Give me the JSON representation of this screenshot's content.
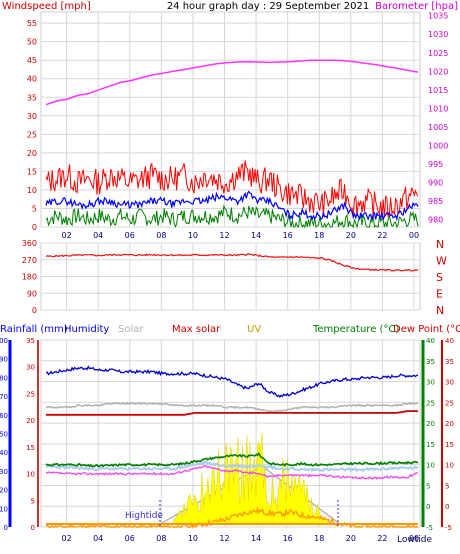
{
  "header": {
    "left_title": "Windspeed [mph]",
    "center_title": "24 hour graph day : 29 September 2021",
    "right_title": "Barometer [hpa]"
  },
  "colors": {
    "grid": "#d8d8d8",
    "wind_gust": "#ff0000",
    "wind_avg": "#0000ff",
    "wind_low": "#008000",
    "barometer": "#ff33ff",
    "direction": "#ee1111",
    "rain": "#0000ff",
    "humidity": "#0000cc",
    "solar": "#b0b0b0",
    "maxsolar": "#cc0000",
    "uv": "#cc9900",
    "temperature": "#008000",
    "dewpoint": "#cc0000"
  },
  "chart_data": [
    {
      "type": "line",
      "name": "wind-barometer",
      "title": "24 hour graph day : 29 September 2021",
      "ylabel_left": "Windspeed [mph]",
      "ylabel_right": "Barometer [hpa]",
      "x_ticks": [
        "02",
        "04",
        "06",
        "08",
        "10",
        "12",
        "14",
        "16",
        "18",
        "20",
        "22",
        "00"
      ],
      "y_left_ticks": [
        0,
        5,
        10,
        15,
        20,
        25,
        30,
        35,
        40,
        45,
        50,
        55
      ],
      "y_left_lim": [
        0,
        58
      ],
      "y_right_ticks": [
        980,
        985,
        990,
        995,
        1000,
        1005,
        1010,
        1015,
        1020,
        1025,
        1030,
        1035
      ],
      "y_right_lim": [
        978,
        1036
      ],
      "series": [
        {
          "key": "gust",
          "values": [
            12,
            13,
            14,
            12,
            13,
            12,
            14,
            13,
            12,
            13,
            14,
            13,
            13,
            14,
            12,
            14,
            13,
            12,
            14,
            15,
            12,
            13,
            10,
            9,
            8,
            7,
            6,
            8,
            10,
            6,
            7,
            6,
            5,
            6,
            8,
            9
          ]
        },
        {
          "key": "avg",
          "values": [
            6,
            7,
            7,
            6,
            6,
            7,
            7,
            6,
            6,
            6,
            7,
            7,
            6,
            7,
            7,
            7,
            8,
            8,
            7,
            9,
            7,
            7,
            5,
            3,
            4,
            3,
            3,
            4,
            6,
            3,
            3,
            3,
            3,
            3,
            5,
            6
          ]
        },
        {
          "key": "low",
          "values": [
            2,
            3,
            2,
            3,
            2,
            3,
            2,
            3,
            2,
            3,
            2,
            3,
            2,
            3,
            3,
            3,
            3,
            4,
            3,
            4,
            3,
            3,
            2,
            1,
            1,
            1,
            1,
            1,
            2,
            1,
            1,
            1,
            1,
            1,
            2,
            2
          ]
        },
        {
          "key": "baro",
          "values": [
            1011,
            1012,
            1012.5,
            1013.5,
            1014,
            1015,
            1016,
            1017,
            1017.5,
            1018.3,
            1019,
            1019.5,
            1020,
            1020.5,
            1021,
            1021.5,
            1022,
            1022.3,
            1022.5,
            1022.6,
            1022.5,
            1022.4,
            1022.5,
            1022.6,
            1022.8,
            1023,
            1023,
            1023,
            1022.9,
            1022.6,
            1022.2,
            1021.8,
            1021.3,
            1020.8,
            1020.3,
            1019.8
          ]
        }
      ]
    },
    {
      "type": "line",
      "name": "wind-direction",
      "y_left_ticks": [
        0,
        90,
        180,
        270,
        360
      ],
      "y_left_lim": [
        0,
        360
      ],
      "y_right_labels": [
        "N",
        "W",
        "S",
        "E",
        "N"
      ],
      "values": [
        288,
        290,
        292,
        294,
        295,
        293,
        296,
        297,
        296,
        295,
        297,
        296,
        295,
        294,
        296,
        295,
        296,
        295,
        294,
        300,
        292,
        285,
        282,
        285,
        284,
        280,
        278,
        262,
        240,
        224,
        218,
        216,
        214,
        213,
        214,
        214
      ]
    },
    {
      "type": "line",
      "name": "rain-humidity-solar-temp",
      "legend": [
        "Rainfall (mm)",
        "Humidity",
        "Solar",
        "Max solar",
        "UV",
        "Temperature (°C)",
        "Dew Point (°C)"
      ],
      "x_ticks": [
        "02",
        "04",
        "06",
        "08",
        "10",
        "12",
        "14",
        "16",
        "18",
        "20",
        "22",
        "00"
      ],
      "y_rain_ticks": [
        0,
        10,
        20,
        30,
        40,
        50,
        60,
        70,
        80,
        90,
        100
      ],
      "y_hum_ticks": [
        0,
        5,
        10,
        15,
        20,
        25,
        30,
        35
      ],
      "y_temp_ticks": [
        -5,
        0,
        5,
        10,
        15,
        20,
        25,
        30,
        35,
        40
      ],
      "y_temp_lim": [
        -5,
        40
      ],
      "annotations": [
        "Hightide",
        "Lowtide"
      ],
      "series": [
        {
          "key": "humidity",
          "values": [
            82,
            83,
            84,
            85,
            85,
            84,
            84,
            83,
            83,
            83,
            83,
            82,
            82,
            82,
            82,
            81,
            80,
            79,
            76,
            74,
            77,
            72,
            70,
            71,
            73,
            75,
            77,
            78,
            79,
            79,
            80,
            80,
            80,
            81,
            81,
            81
          ]
        },
        {
          "key": "solar",
          "values": [
            64,
            64,
            64,
            65,
            65,
            65,
            66,
            66,
            66,
            66,
            66,
            66,
            65,
            65,
            65,
            65,
            65,
            64,
            64,
            64,
            63,
            62,
            62,
            63,
            64,
            64,
            64,
            64,
            65,
            65,
            65,
            65,
            65,
            65,
            66,
            66
          ]
        },
        {
          "key": "maxsolar",
          "values": [
            60,
            60,
            60,
            60,
            60,
            60,
            60,
            60,
            60,
            60,
            60,
            60,
            60,
            60,
            61,
            61,
            61,
            61,
            61,
            61,
            61,
            61,
            61,
            61,
            61,
            61,
            61,
            61,
            61,
            61,
            61,
            61,
            61,
            61,
            62,
            62
          ]
        },
        {
          "key": "temperature",
          "values": [
            10,
            10,
            10,
            10,
            9.7,
            9.7,
            9.8,
            10,
            10,
            10,
            10,
            10,
            10,
            10.3,
            10.8,
            11.3,
            11.7,
            12,
            12.2,
            12,
            12.5,
            10.3,
            10,
            10,
            10.2,
            10,
            10,
            10,
            10.2,
            10.3,
            10.3,
            10.3,
            10.4,
            10.4,
            10.5,
            10.5
          ]
        },
        {
          "key": "dewpoint",
          "values": [
            8,
            8,
            7.8,
            7.8,
            7.8,
            7.8,
            7.8,
            7.8,
            7.8,
            7.8,
            7.8,
            7.8,
            7.8,
            8.5,
            9,
            9.6,
            9,
            8.5,
            8.5,
            8,
            8,
            7,
            7.5,
            7.5,
            7.5,
            7.3,
            7.5,
            7.2,
            7,
            6.8,
            6.8,
            6.8,
            7,
            7,
            7,
            8
          ]
        },
        {
          "key": "lightblue",
          "values": [
            9.5,
            9.5,
            9.3,
            9.2,
            9,
            9,
            9,
            9,
            9,
            9,
            9,
            9,
            9,
            9.5,
            10,
            10.5,
            10,
            9.6,
            9.8,
            9.5,
            10,
            9.5,
            9,
            9,
            8.8,
            8.8,
            8.8,
            8.8,
            8.8,
            8.8,
            8.8,
            8.9,
            9,
            9.2,
            9.2,
            9.2
          ]
        },
        {
          "key": "uv",
          "values": [
            0,
            0,
            0,
            0,
            0,
            0,
            0,
            0,
            0,
            0,
            0,
            0,
            0,
            0,
            0.2,
            0.6,
            1,
            1.5,
            2.2,
            2.8,
            3,
            2.6,
            2.4,
            2.8,
            2.2,
            2,
            1.5,
            1,
            0.4,
            0,
            0,
            0,
            0,
            0,
            0,
            0
          ]
        }
      ]
    }
  ]
}
